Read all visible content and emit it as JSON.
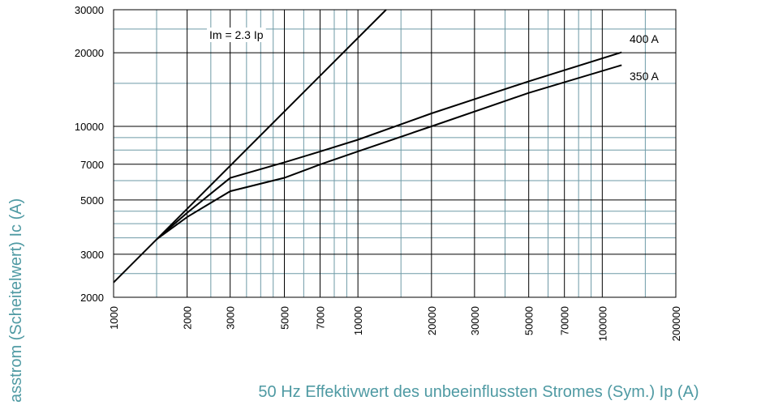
{
  "chart_data": {
    "type": "line",
    "x_label": "50 Hz Effektivwert des unbeeinflussten Stromes (Sym.) Ip (A)",
    "y_label": "asstrom (Scheitelwert) Ic (A)",
    "log_x": true,
    "log_y": true,
    "grid": true,
    "xlim": [
      1000,
      200000
    ],
    "ylim": [
      2000,
      30000
    ],
    "xticks": [
      1000,
      2000,
      3000,
      5000,
      7000,
      10000,
      20000,
      30000,
      50000,
      70000,
      100000,
      200000
    ],
    "yticks": [
      2000,
      3000,
      5000,
      7000,
      10000,
      20000,
      30000
    ],
    "xgrid": [
      1500,
      2500,
      3500,
      4000,
      4500,
      6000,
      8000,
      9000,
      15000,
      40000,
      60000,
      80000,
      90000,
      150000
    ],
    "ygrid": [
      2500,
      3500,
      4000,
      4500,
      6000,
      8000,
      9000,
      15000,
      25000
    ],
    "series": [
      {
        "name": "Im = 2.3 Ip",
        "color": "#000000",
        "x": [
          1000,
          13043
        ],
        "values": [
          2300,
          30000
        ]
      },
      {
        "name": "400 A",
        "color": "#000000",
        "x": [
          1500,
          2000,
          3000,
          5000,
          7000,
          10000,
          20000,
          50000,
          120000
        ],
        "values": [
          3450,
          4430,
          6150,
          7130,
          7890,
          8820,
          11300,
          15290,
          20090
        ]
      },
      {
        "name": "350 A",
        "color": "#000000",
        "x": [
          1500,
          2000,
          3000,
          5000,
          7000,
          10000,
          20000,
          50000,
          120000
        ],
        "values": [
          3450,
          4260,
          5430,
          6160,
          6980,
          7900,
          10000,
          13700,
          17800
        ]
      }
    ]
  }
}
